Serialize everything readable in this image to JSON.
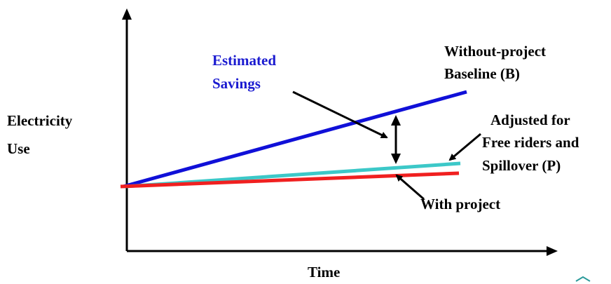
{
  "axes": {
    "y_label_lines": [
      "Electricity",
      "Use"
    ],
    "x_label": "Time"
  },
  "annotations": {
    "estimated_savings_lines": [
      "Estimated",
      "Savings"
    ],
    "baseline_lines": [
      "Without-project",
      "Baseline (B)"
    ],
    "adjusted_lines": [
      "Adjusted for",
      "Free riders and",
      "Spillover (P)"
    ],
    "with_project": "With project"
  },
  "colors": {
    "axis": "#000000",
    "baseline_line": "#1010d8",
    "adjusted_line": "#3cc8c8",
    "with_project_line": "#f02020",
    "estimated_savings_text": "#1a1ad0",
    "label_text": "#000000",
    "corner_mark": "#2a9a9a"
  }
}
